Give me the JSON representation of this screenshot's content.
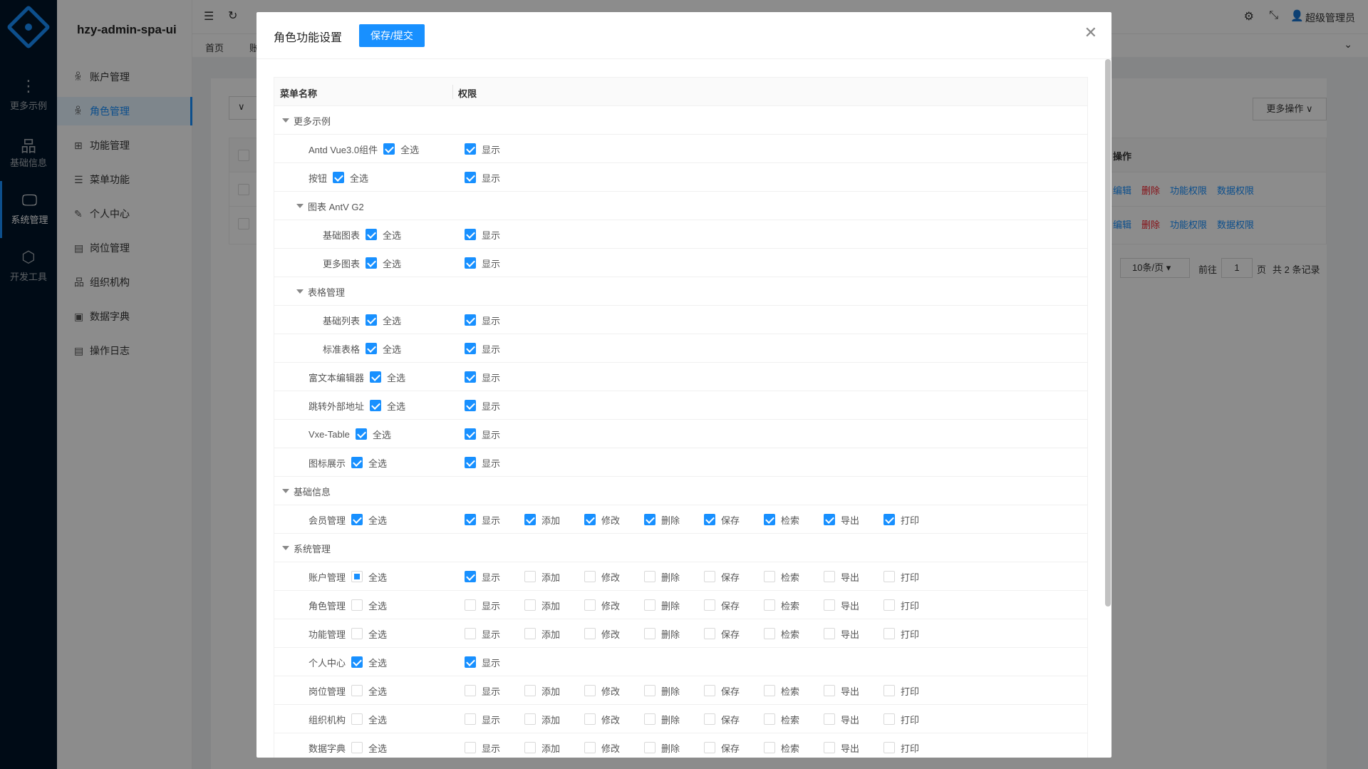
{
  "app": {
    "brand": "hzy-admin-spa-ui",
    "user": "超级管理员",
    "accent": "#1890ff"
  },
  "nav1": [
    {
      "label": "更多示例",
      "icon": "more-icon"
    },
    {
      "label": "基础信息",
      "icon": "sitemap-icon"
    },
    {
      "label": "系统管理",
      "icon": "desktop-icon",
      "active": true
    },
    {
      "label": "开发工具",
      "icon": "code-sandbox-icon"
    }
  ],
  "nav2": [
    {
      "label": "账户管理",
      "icon": "user-icon"
    },
    {
      "label": "角色管理",
      "icon": "role-icon",
      "active": true
    },
    {
      "label": "功能管理",
      "icon": "function-icon"
    },
    {
      "label": "菜单功能",
      "icon": "menu-icon"
    },
    {
      "label": "个人中心",
      "icon": "edit-icon"
    },
    {
      "label": "岗位管理",
      "icon": "id-card-icon"
    },
    {
      "label": "组织机构",
      "icon": "org-icon"
    },
    {
      "label": "数据字典",
      "icon": "dictionary-icon"
    },
    {
      "label": "操作日志",
      "icon": "log-icon"
    }
  ],
  "tabs": {
    "home": "首页",
    "partial": "账"
  },
  "bg": {
    "more_ops": "更多操作",
    "col_ops": "操作",
    "actions": [
      "编辑",
      "删除",
      "功能权限",
      "数据权限"
    ],
    "page_size": "10条/页",
    "goto": "前往",
    "page": "1",
    "page_unit": "页",
    "total": "共 2 条记录"
  },
  "modal": {
    "title": "角色功能设置",
    "save": "保存/提交",
    "col_menu": "菜单名称",
    "col_perm": "权限",
    "select_all": "全选",
    "rows": [
      {
        "label": "更多示例",
        "group": true,
        "level": 0
      },
      {
        "label": "Antd Vue3.0组件",
        "level": 1,
        "all": "on",
        "perms": [
          [
            "显示",
            true
          ]
        ]
      },
      {
        "label": "按钮",
        "level": 1,
        "all": "on",
        "perms": [
          [
            "显示",
            true
          ]
        ]
      },
      {
        "label": "图表 AntV G2",
        "group": true,
        "level": 1
      },
      {
        "label": "基础图表",
        "level": 2,
        "all": "on",
        "perms": [
          [
            "显示",
            true
          ]
        ]
      },
      {
        "label": "更多图表",
        "level": 2,
        "all": "on",
        "perms": [
          [
            "显示",
            true
          ]
        ]
      },
      {
        "label": "表格管理",
        "group": true,
        "level": 1
      },
      {
        "label": "基础列表",
        "level": 2,
        "all": "on",
        "perms": [
          [
            "显示",
            true
          ]
        ]
      },
      {
        "label": "标准表格",
        "level": 2,
        "all": "on",
        "perms": [
          [
            "显示",
            true
          ]
        ]
      },
      {
        "label": "富文本编辑器",
        "level": 1,
        "all": "on",
        "perms": [
          [
            "显示",
            true
          ]
        ]
      },
      {
        "label": "跳转外部地址",
        "level": 1,
        "all": "on",
        "perms": [
          [
            "显示",
            true
          ]
        ]
      },
      {
        "label": "Vxe-Table",
        "level": 1,
        "all": "on",
        "perms": [
          [
            "显示",
            true
          ]
        ]
      },
      {
        "label": "图标展示",
        "level": 1,
        "all": "on",
        "perms": [
          [
            "显示",
            true
          ]
        ]
      },
      {
        "label": "基础信息",
        "group": true,
        "level": 0
      },
      {
        "label": "会员管理",
        "level": 1,
        "all": "on",
        "perms": [
          [
            "显示",
            true
          ],
          [
            "添加",
            true
          ],
          [
            "修改",
            true
          ],
          [
            "删除",
            true
          ],
          [
            "保存",
            true
          ],
          [
            "检索",
            true
          ],
          [
            "导出",
            true
          ],
          [
            "打印",
            true
          ]
        ]
      },
      {
        "label": "系统管理",
        "group": true,
        "level": 0
      },
      {
        "label": "账户管理",
        "level": 1,
        "all": "ind",
        "perms": [
          [
            "显示",
            true
          ],
          [
            "添加",
            false
          ],
          [
            "修改",
            false
          ],
          [
            "删除",
            false
          ],
          [
            "保存",
            false
          ],
          [
            "检索",
            false
          ],
          [
            "导出",
            false
          ],
          [
            "打印",
            false
          ]
        ]
      },
      {
        "label": "角色管理",
        "level": 1,
        "all": "off",
        "perms": [
          [
            "显示",
            false
          ],
          [
            "添加",
            false
          ],
          [
            "修改",
            false
          ],
          [
            "删除",
            false
          ],
          [
            "保存",
            false
          ],
          [
            "检索",
            false
          ],
          [
            "导出",
            false
          ],
          [
            "打印",
            false
          ]
        ]
      },
      {
        "label": "功能管理",
        "level": 1,
        "all": "off",
        "perms": [
          [
            "显示",
            false
          ],
          [
            "添加",
            false
          ],
          [
            "修改",
            false
          ],
          [
            "删除",
            false
          ],
          [
            "保存",
            false
          ],
          [
            "检索",
            false
          ],
          [
            "导出",
            false
          ],
          [
            "打印",
            false
          ]
        ]
      },
      {
        "label": "个人中心",
        "level": 1,
        "all": "on",
        "perms": [
          [
            "显示",
            true
          ]
        ]
      },
      {
        "label": "岗位管理",
        "level": 1,
        "all": "off",
        "perms": [
          [
            "显示",
            false
          ],
          [
            "添加",
            false
          ],
          [
            "修改",
            false
          ],
          [
            "删除",
            false
          ],
          [
            "保存",
            false
          ],
          [
            "检索",
            false
          ],
          [
            "导出",
            false
          ],
          [
            "打印",
            false
          ]
        ]
      },
      {
        "label": "组织机构",
        "level": 1,
        "all": "off",
        "perms": [
          [
            "显示",
            false
          ],
          [
            "添加",
            false
          ],
          [
            "修改",
            false
          ],
          [
            "删除",
            false
          ],
          [
            "保存",
            false
          ],
          [
            "检索",
            false
          ],
          [
            "导出",
            false
          ],
          [
            "打印",
            false
          ]
        ]
      },
      {
        "label": "数据字典",
        "level": 1,
        "all": "off",
        "perms": [
          [
            "显示",
            false
          ],
          [
            "添加",
            false
          ],
          [
            "修改",
            false
          ],
          [
            "删除",
            false
          ],
          [
            "保存",
            false
          ],
          [
            "检索",
            false
          ],
          [
            "导出",
            false
          ],
          [
            "打印",
            false
          ]
        ]
      }
    ]
  }
}
